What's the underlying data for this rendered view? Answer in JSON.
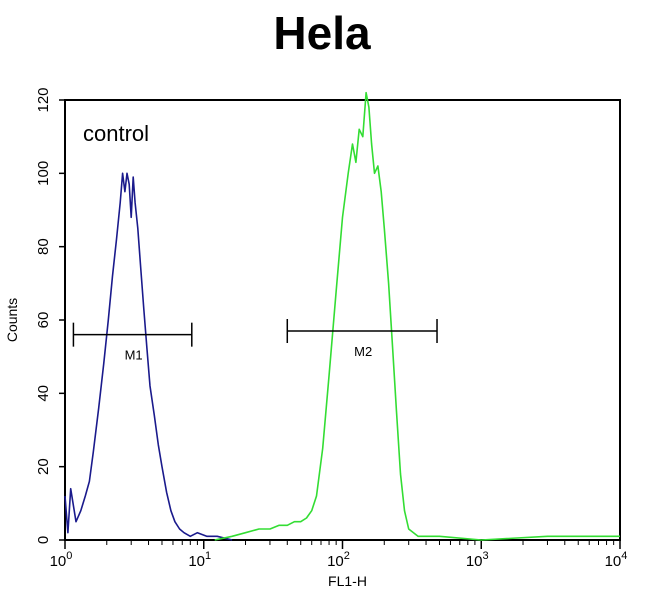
{
  "chart_data": {
    "type": "line",
    "title": "Hela",
    "xlabel": "FL1-H",
    "ylabel": "Counts",
    "xscale": "log",
    "xlim": [
      1,
      10000
    ],
    "ylim": [
      0,
      120
    ],
    "x_ticks": [
      {
        "base": "10",
        "exp": "0"
      },
      {
        "base": "10",
        "exp": "1"
      },
      {
        "base": "10",
        "exp": "2"
      },
      {
        "base": "10",
        "exp": "3"
      },
      {
        "base": "10",
        "exp": "4"
      }
    ],
    "y_ticks": [
      0,
      20,
      40,
      60,
      80,
      100,
      120
    ],
    "annotation": "control",
    "series": [
      {
        "color": "#1a1a8c",
        "x": [
          1.0,
          1.05,
          1.1,
          1.2,
          1.3,
          1.4,
          1.5,
          1.6,
          1.75,
          1.9,
          2.05,
          2.2,
          2.35,
          2.5,
          2.6,
          2.7,
          2.8,
          2.9,
          3.0,
          3.1,
          3.2,
          3.35,
          3.5,
          3.7,
          3.9,
          4.1,
          4.4,
          4.7,
          5.0,
          5.4,
          5.8,
          6.2,
          6.7,
          7.2,
          8.0,
          9.0,
          10.5,
          12.5,
          16
        ],
        "y": [
          12,
          2,
          14,
          5,
          8,
          12,
          16,
          24,
          36,
          48,
          60,
          72,
          82,
          92,
          100,
          95,
          100,
          97,
          88,
          99,
          92,
          85,
          75,
          63,
          52,
          42,
          34,
          26,
          20,
          13,
          8,
          5,
          3,
          2,
          1,
          2,
          1,
          1,
          0
        ]
      },
      {
        "color": "#33dd33",
        "x": [
          12,
          16,
          20,
          25,
          30,
          35,
          40,
          45,
          50,
          55,
          60,
          65,
          72,
          80,
          90,
          100,
          110,
          118,
          125,
          132,
          140,
          148,
          155,
          162,
          170,
          180,
          190,
          200,
          215,
          230,
          245,
          262,
          280,
          300,
          350,
          500,
          1000,
          3000,
          10000
        ],
        "y": [
          0,
          1,
          2,
          3,
          3,
          4,
          4,
          5,
          5,
          6,
          8,
          12,
          25,
          45,
          68,
          88,
          100,
          108,
          103,
          112,
          110,
          122,
          118,
          108,
          100,
          102,
          95,
          85,
          70,
          52,
          35,
          18,
          8,
          3,
          1,
          1,
          0,
          1,
          1
        ]
      }
    ],
    "markers": [
      {
        "label": "M1",
        "x_start": 1.15,
        "x_end": 8.2,
        "y": 56
      },
      {
        "label": "M2",
        "x_start": 40,
        "x_end": 480,
        "y": 57
      }
    ]
  }
}
